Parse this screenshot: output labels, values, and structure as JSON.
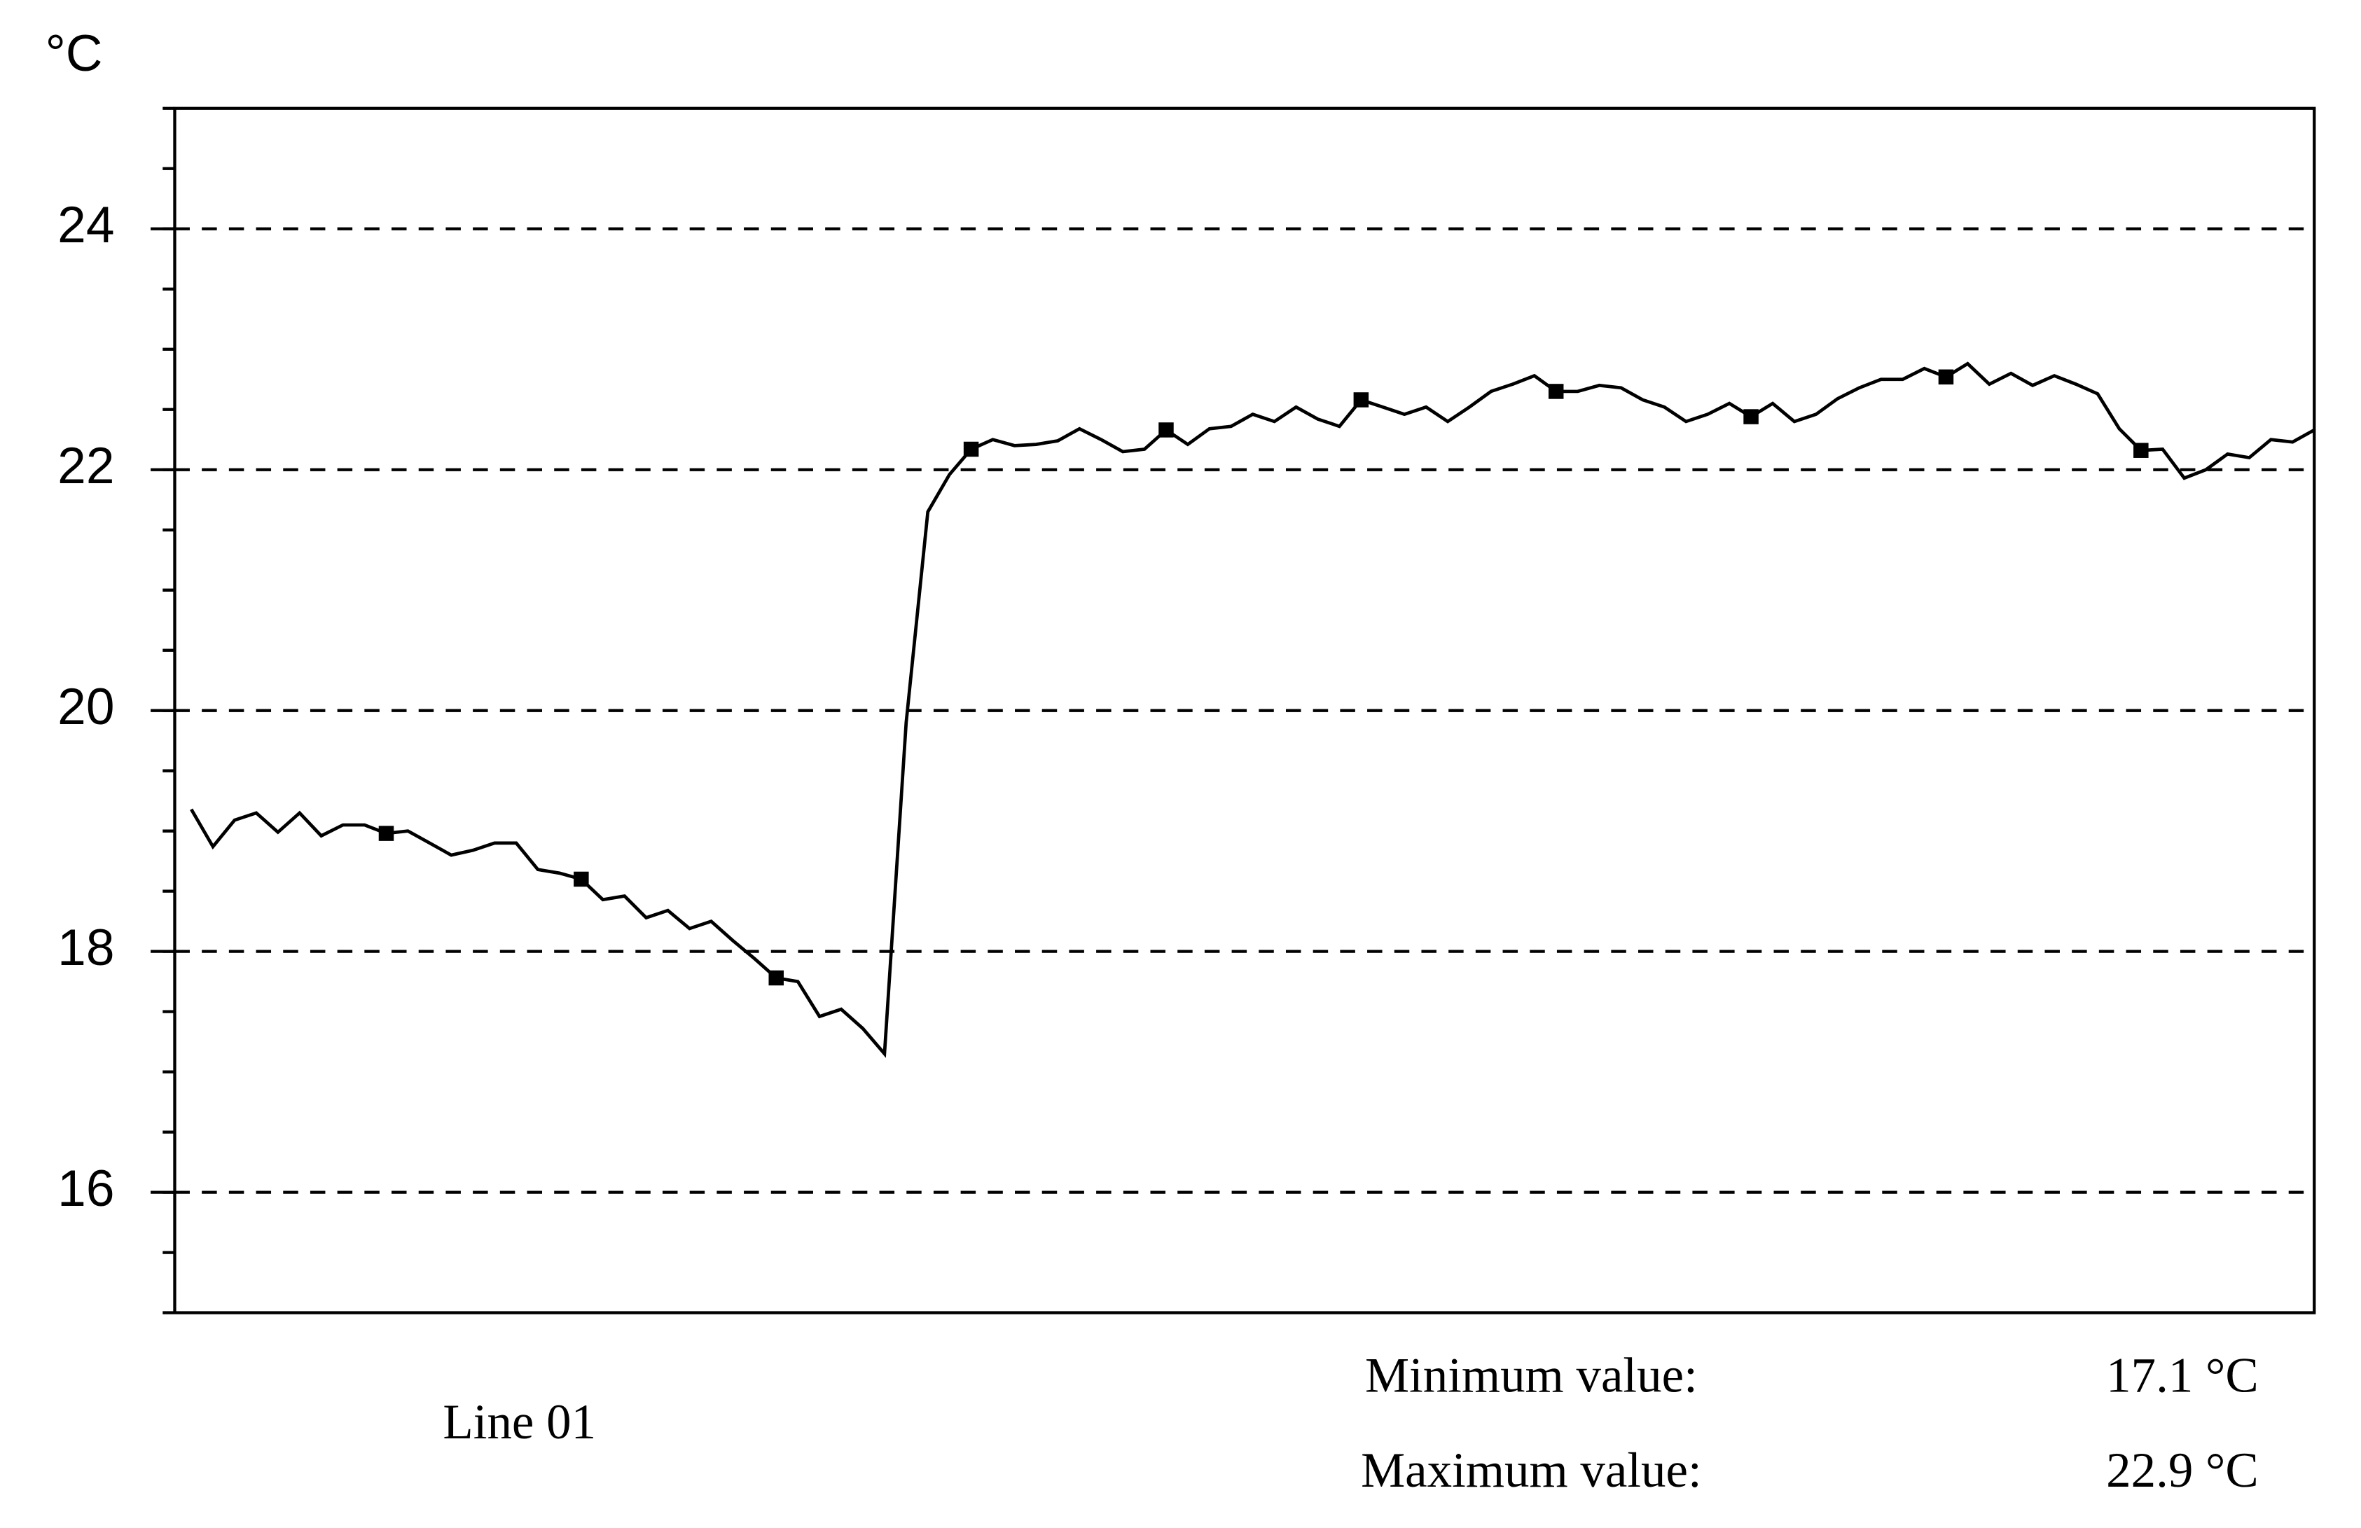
{
  "chart_data": {
    "type": "line",
    "y_label": "°C",
    "ylim": [
      15,
      25
    ],
    "yticks": [
      16,
      18,
      20,
      22,
      24
    ],
    "minor_step": 0.5,
    "grid": true,
    "marker": "square",
    "marker_every": 9,
    "series": [
      {
        "name": "Line 01",
        "color": "#000000",
        "values": [
          19.18,
          18.87,
          19.09,
          19.15,
          18.99,
          19.15,
          18.96,
          19.05,
          19.05,
          18.98,
          19.0,
          18.9,
          18.8,
          18.84,
          18.9,
          18.9,
          18.68,
          18.65,
          18.6,
          18.43,
          18.46,
          18.28,
          18.34,
          18.19,
          18.25,
          18.09,
          17.94,
          17.78,
          17.75,
          17.46,
          17.52,
          17.36,
          17.15,
          19.9,
          21.65,
          21.96,
          22.17,
          22.25,
          22.2,
          22.21,
          22.24,
          22.34,
          22.25,
          22.15,
          22.17,
          22.33,
          22.21,
          22.34,
          22.36,
          22.46,
          22.4,
          22.52,
          22.42,
          22.36,
          22.58,
          22.52,
          22.46,
          22.52,
          22.4,
          22.52,
          22.65,
          22.71,
          22.78,
          22.65,
          22.65,
          22.7,
          22.68,
          22.58,
          22.52,
          22.4,
          22.46,
          22.55,
          22.44,
          22.55,
          22.4,
          22.46,
          22.59,
          22.68,
          22.75,
          22.75,
          22.84,
          22.77,
          22.88,
          22.71,
          22.8,
          22.7,
          22.78,
          22.71,
          22.63,
          22.34,
          22.16,
          22.17,
          21.93,
          22.0,
          22.13,
          22.1,
          22.25,
          22.23,
          22.33
        ]
      }
    ],
    "stats": [
      {
        "label": "Minimum value:",
        "value": "17.1 °C"
      },
      {
        "label": "Maximum value:",
        "value": "22.9 °C"
      }
    ]
  }
}
